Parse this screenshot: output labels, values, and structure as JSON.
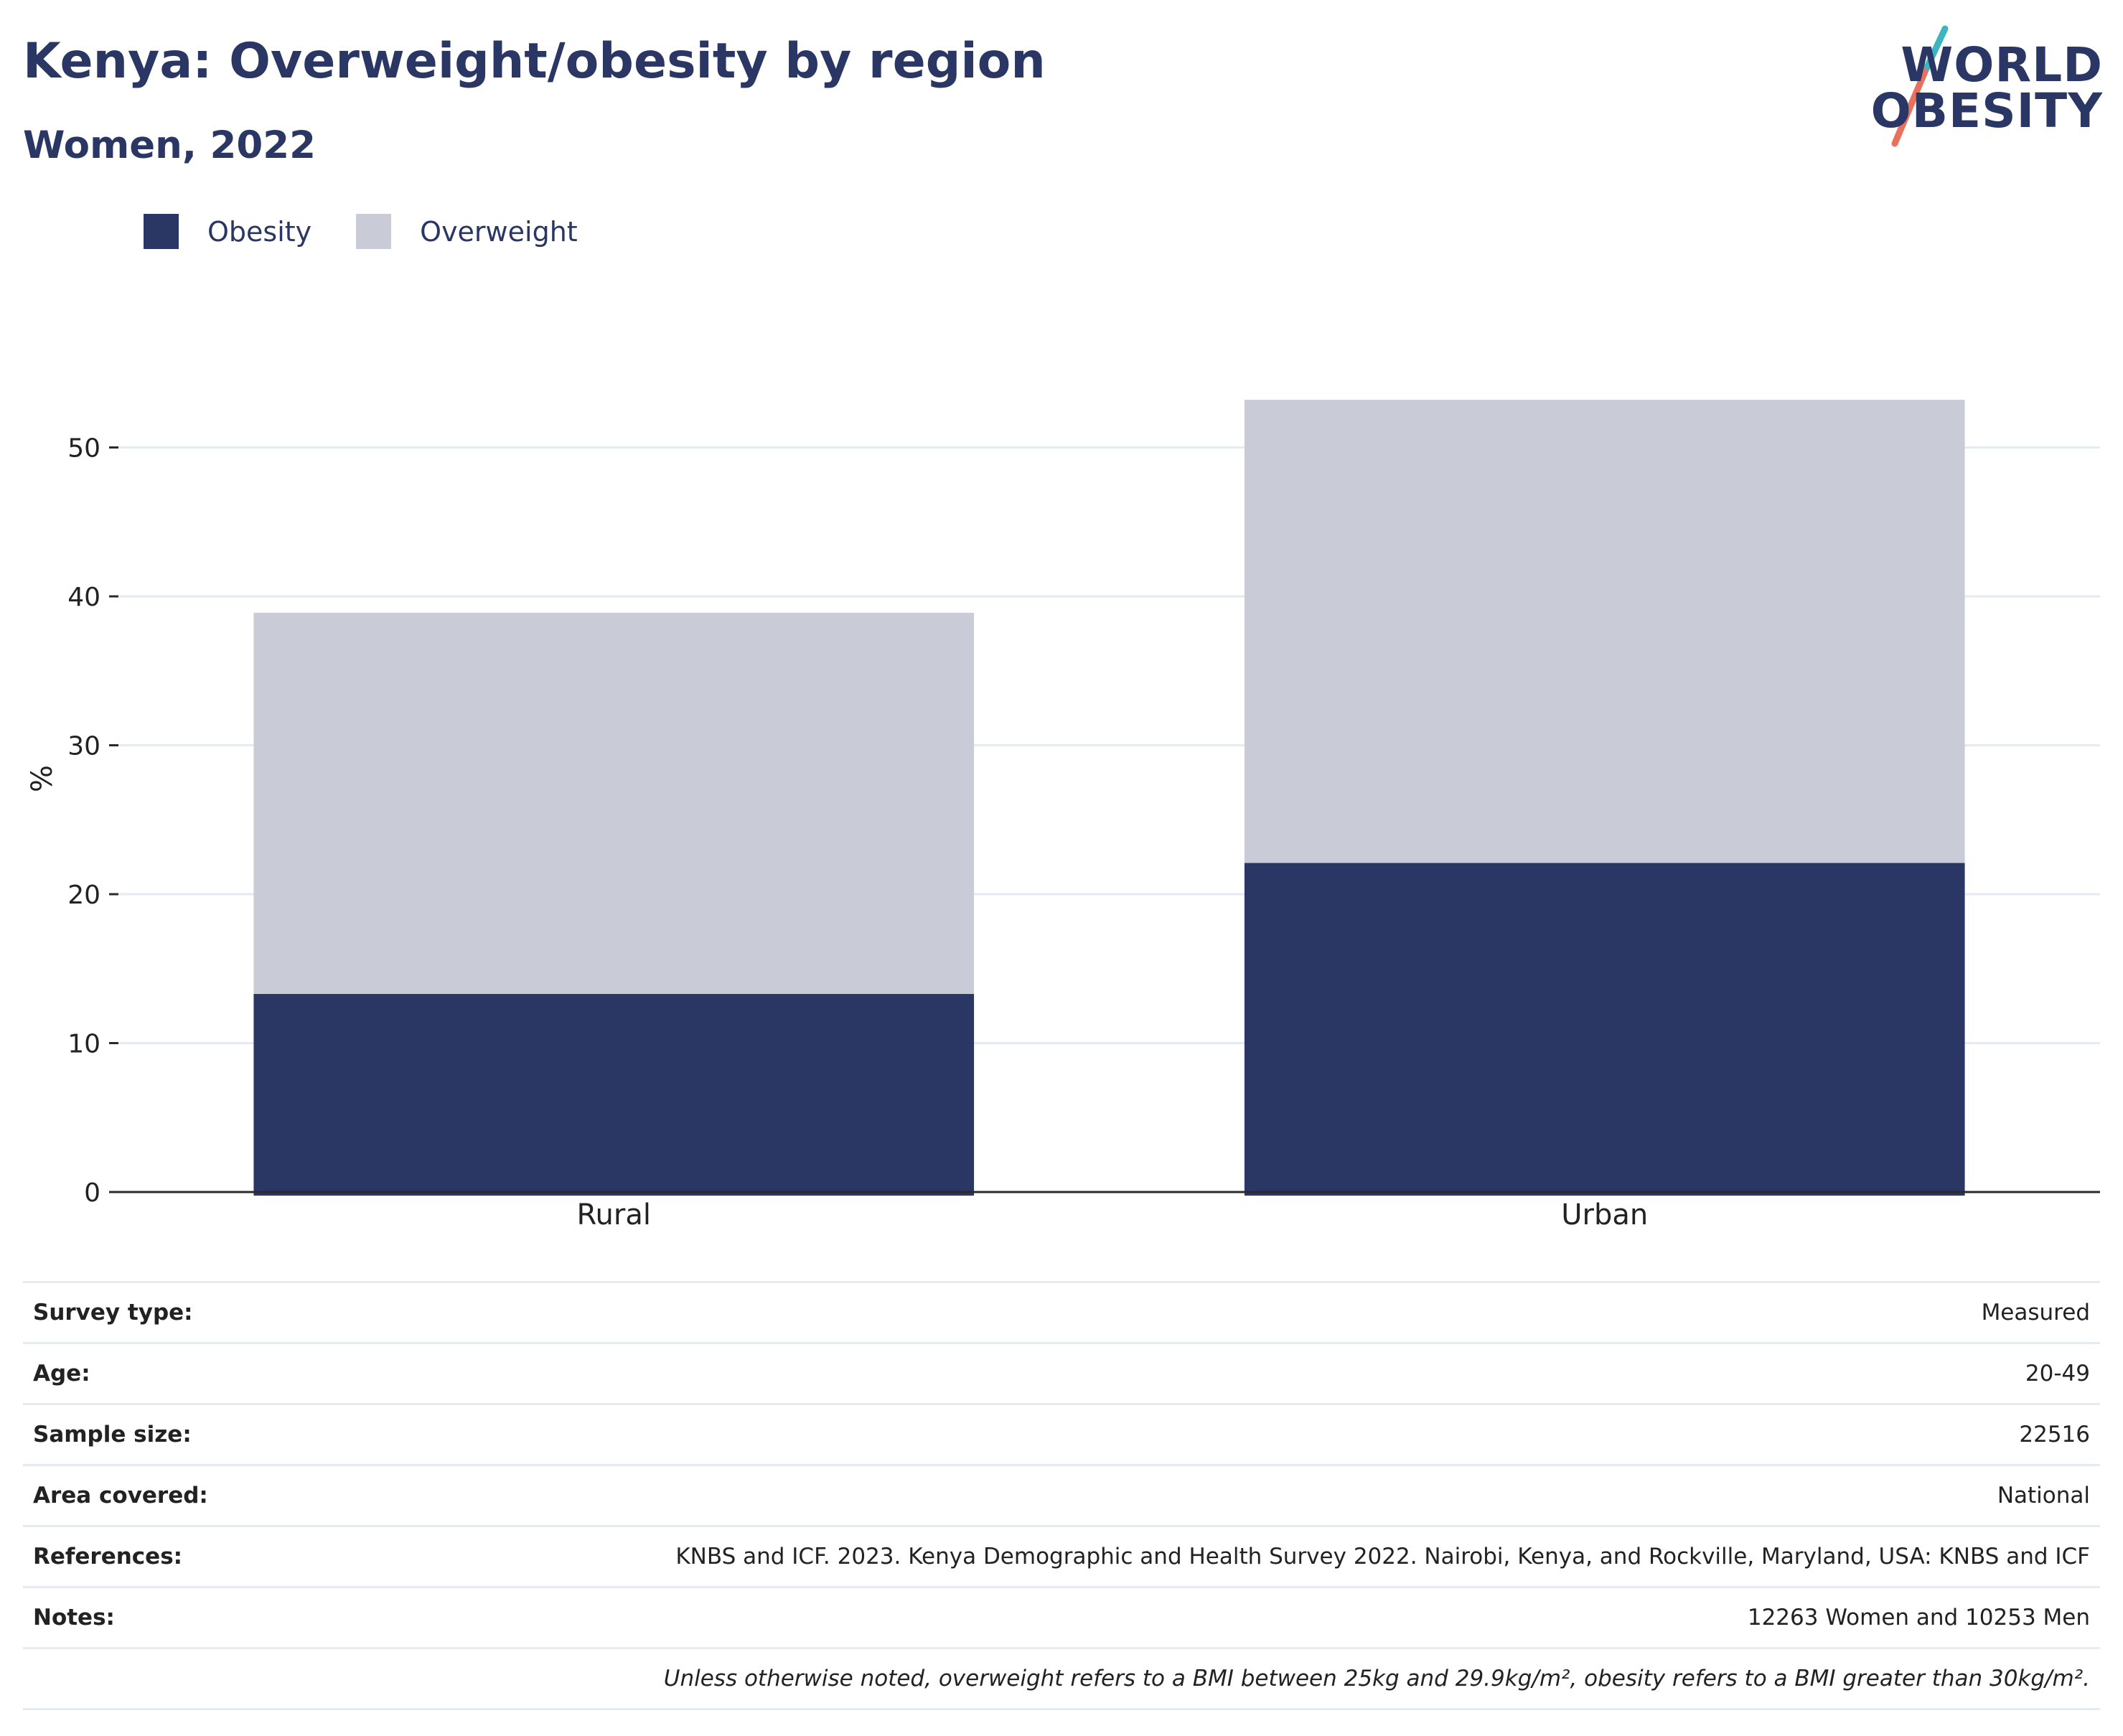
{
  "header": {
    "title": "Kenya: Overweight/obesity by region",
    "subtitle": "Women, 2022"
  },
  "logo": {
    "line1": "WORLD",
    "line2": "OBESITY",
    "colors": {
      "text": "#2a3663",
      "slash_top": "#3db5c0",
      "slash_bottom": "#e8705d"
    }
  },
  "legend": {
    "items": [
      {
        "label": "Obesity",
        "color": "#2a3663"
      },
      {
        "label": "Overweight",
        "color": "#c9cbd6"
      }
    ]
  },
  "chart_data": {
    "type": "bar",
    "stacked": true,
    "categories": [
      "Rural",
      "Urban"
    ],
    "series": [
      {
        "name": "Obesity",
        "values": [
          13.3,
          22.1
        ],
        "color": "#2a3663"
      },
      {
        "name": "Overweight",
        "values": [
          25.6,
          31.1
        ],
        "color": "#c9cbd6"
      }
    ],
    "ylabel": "%",
    "ylim": [
      0,
      56
    ],
    "yticks": [
      0,
      10,
      20,
      30,
      40,
      50
    ],
    "grid": true,
    "legend_position": "top-left"
  },
  "info": {
    "rows": [
      {
        "key": "Survey type:",
        "value": "Measured"
      },
      {
        "key": "Age:",
        "value": "20-49"
      },
      {
        "key": "Sample size:",
        "value": "22516"
      },
      {
        "key": "Area covered:",
        "value": "National"
      },
      {
        "key": "References:",
        "value": "KNBS and ICF. 2023. Kenya Demographic and Health Survey 2022. Nairobi, Kenya, and Rockville, Maryland, USA: KNBS and ICF"
      },
      {
        "key": "Notes:",
        "value": "12263 Women and 10253 Men"
      }
    ],
    "footnote": "Unless otherwise noted, overweight refers to a BMI between 25kg and 29.9kg/m², obesity refers to a BMI greater than 30kg/m²."
  }
}
